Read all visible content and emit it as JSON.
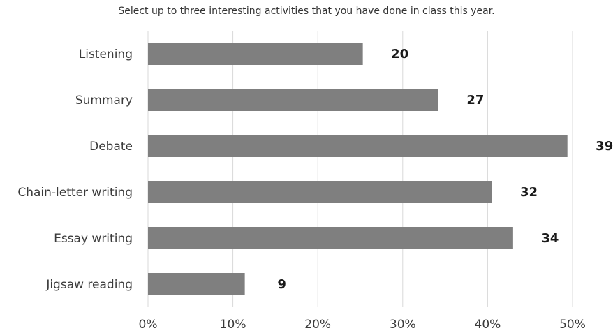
{
  "chart_data": {
    "type": "bar",
    "orientation": "horizontal",
    "title": "Select up to three interesting activities that you have done in class this year.",
    "xlabel": "",
    "ylabel": "",
    "categories": [
      "Listening",
      "Summary",
      "Debate",
      "Chain-letter writing",
      "Essay writing",
      "Jigsaw reading"
    ],
    "values": [
      20,
      27,
      39,
      32,
      34,
      9
    ],
    "percentages": [
      25.3,
      34.2,
      49.4,
      40.5,
      43.0,
      11.4
    ],
    "xlim": [
      0,
      50
    ],
    "x_ticks": [
      "0%",
      "10%",
      "20%",
      "30%",
      "40%",
      "50%"
    ],
    "grid": true,
    "legend": "none",
    "bar_color": "#7f7f7f",
    "grid_color": "#d9d9d9"
  }
}
